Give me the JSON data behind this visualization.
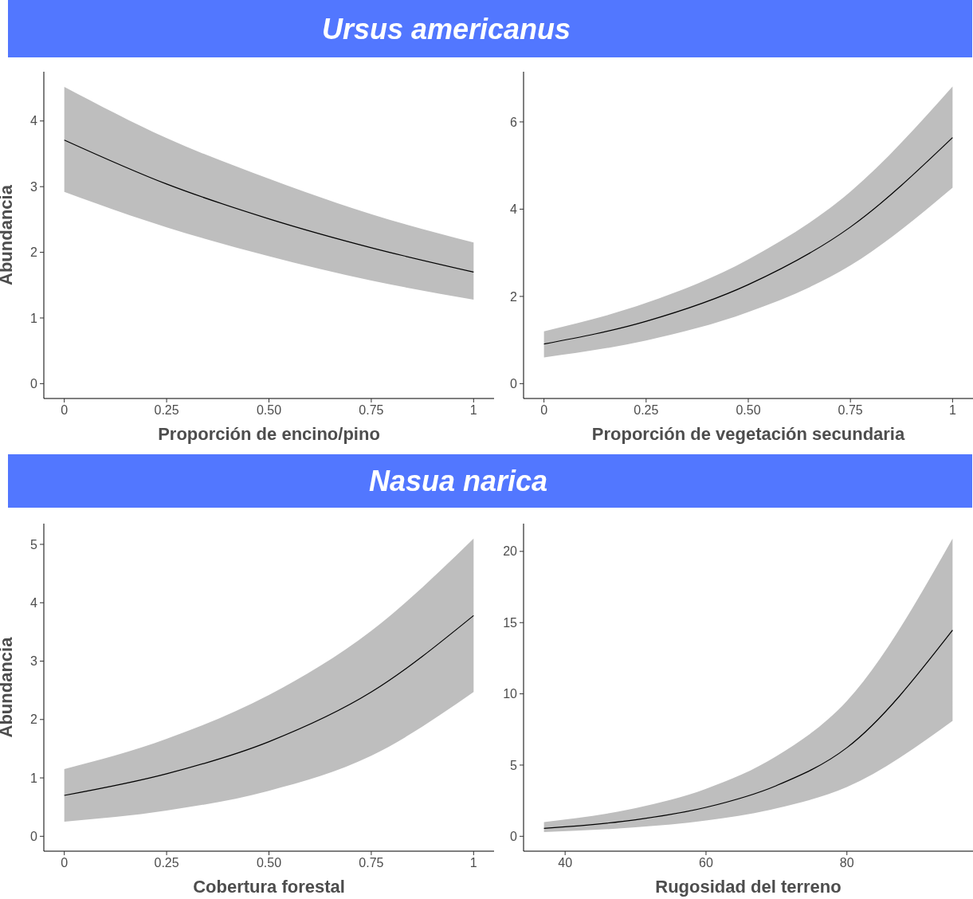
{
  "chart_data": [
    {
      "type": "line",
      "title": "Ursus americanus",
      "xlabel": "Proporción de encino/pino",
      "ylabel": "Abundancia",
      "x": [
        0,
        0.25,
        0.5,
        0.75,
        1
      ],
      "xlim": [
        -0.05,
        1.05
      ],
      "ylim": [
        -0.226,
        4.75
      ],
      "xticks": [
        0,
        {
          "value": 0.25,
          "label": "0.25"
        },
        {
          "value": 0.5,
          "label": "0.50"
        },
        {
          "value": 0.75,
          "label": "0.75"
        },
        1
      ],
      "yticks": [
        0,
        1,
        2,
        3,
        4
      ],
      "series": [
        {
          "color": "#000000",
          "values": [
            3.71,
            3.04,
            2.51,
            2.07,
            1.7
          ],
          "lower": [
            2.92,
            2.38,
            1.94,
            1.57,
            1.28
          ],
          "upper": [
            4.52,
            3.74,
            3.12,
            2.58,
            2.15
          ]
        }
      ]
    },
    {
      "type": "line",
      "xlabel": "Proporción de vegetación secundaria",
      "x": [
        0,
        0.25,
        0.5,
        0.75,
        1
      ],
      "xlim": [
        -0.05,
        1.05
      ],
      "ylim": [
        -0.34,
        7.15
      ],
      "xticks": [
        0,
        {
          "value": 0.25,
          "label": "0.25"
        },
        {
          "value": 0.5,
          "label": "0.50"
        },
        {
          "value": 0.75,
          "label": "0.75"
        },
        1
      ],
      "yticks": [
        0,
        2,
        4,
        6
      ],
      "series": [
        {
          "color": "#000000",
          "values": [
            0.91,
            1.43,
            2.27,
            3.59,
            5.64
          ],
          "lower": [
            0.6,
            0.99,
            1.64,
            2.71,
            4.49
          ],
          "upper": [
            1.2,
            1.85,
            2.85,
            4.4,
            6.81
          ]
        }
      ]
    },
    {
      "type": "line",
      "title": "Nasua narica",
      "xlabel": "Cobertura forestal",
      "ylabel": "Abundancia",
      "x": [
        0,
        0.25,
        0.5,
        0.75,
        1
      ],
      "xlim": [
        -0.05,
        1.05
      ],
      "ylim": [
        -0.255,
        5.355
      ],
      "xticks": [
        0,
        {
          "value": 0.25,
          "label": "0.25"
        },
        {
          "value": 0.5,
          "label": "0.50"
        },
        {
          "value": 0.75,
          "label": "0.75"
        },
        1
      ],
      "yticks": [
        0,
        1,
        2,
        3,
        4,
        5
      ],
      "series": [
        {
          "color": "#000000",
          "values": [
            0.7,
            1.07,
            1.62,
            2.47,
            3.78
          ],
          "lower": [
            0.25,
            0.44,
            0.78,
            1.38,
            2.47
          ],
          "upper": [
            1.15,
            1.67,
            2.42,
            3.52,
            5.1
          ]
        }
      ]
    },
    {
      "type": "line",
      "xlabel": "Rugosidad del terreno",
      "x": [
        37,
        50,
        60,
        70,
        80,
        95
      ],
      "xlim": [
        34.1,
        97.9
      ],
      "ylim": [
        -1.045,
        21.95
      ],
      "xticks": [
        40,
        60,
        80
      ],
      "yticks": [
        0,
        5,
        10,
        15,
        20
      ],
      "series": [
        {
          "color": "#000000",
          "values": [
            0.56,
            1.16,
            2.03,
            3.56,
            6.22,
            14.47
          ],
          "lower": [
            0.3,
            0.63,
            1.11,
            1.96,
            3.46,
            8.1
          ],
          "upper": [
            1.0,
            1.98,
            3.34,
            5.63,
            9.5,
            20.9
          ]
        }
      ]
    }
  ]
}
